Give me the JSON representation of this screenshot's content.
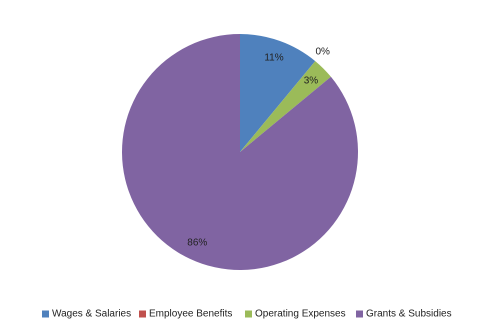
{
  "chart_data": {
    "type": "pie",
    "categories": [
      "Wages & Salaries",
      "Employee Benefits",
      "Operating Expenses",
      "Grants & Subsidies"
    ],
    "values": [
      11,
      0,
      3,
      86
    ],
    "value_labels": [
      "11%",
      "0%",
      "3%",
      "86%"
    ],
    "colors": [
      "#4f81bd",
      "#c0504d",
      "#9bbb59",
      "#8064a2"
    ],
    "legend": "bottom"
  }
}
